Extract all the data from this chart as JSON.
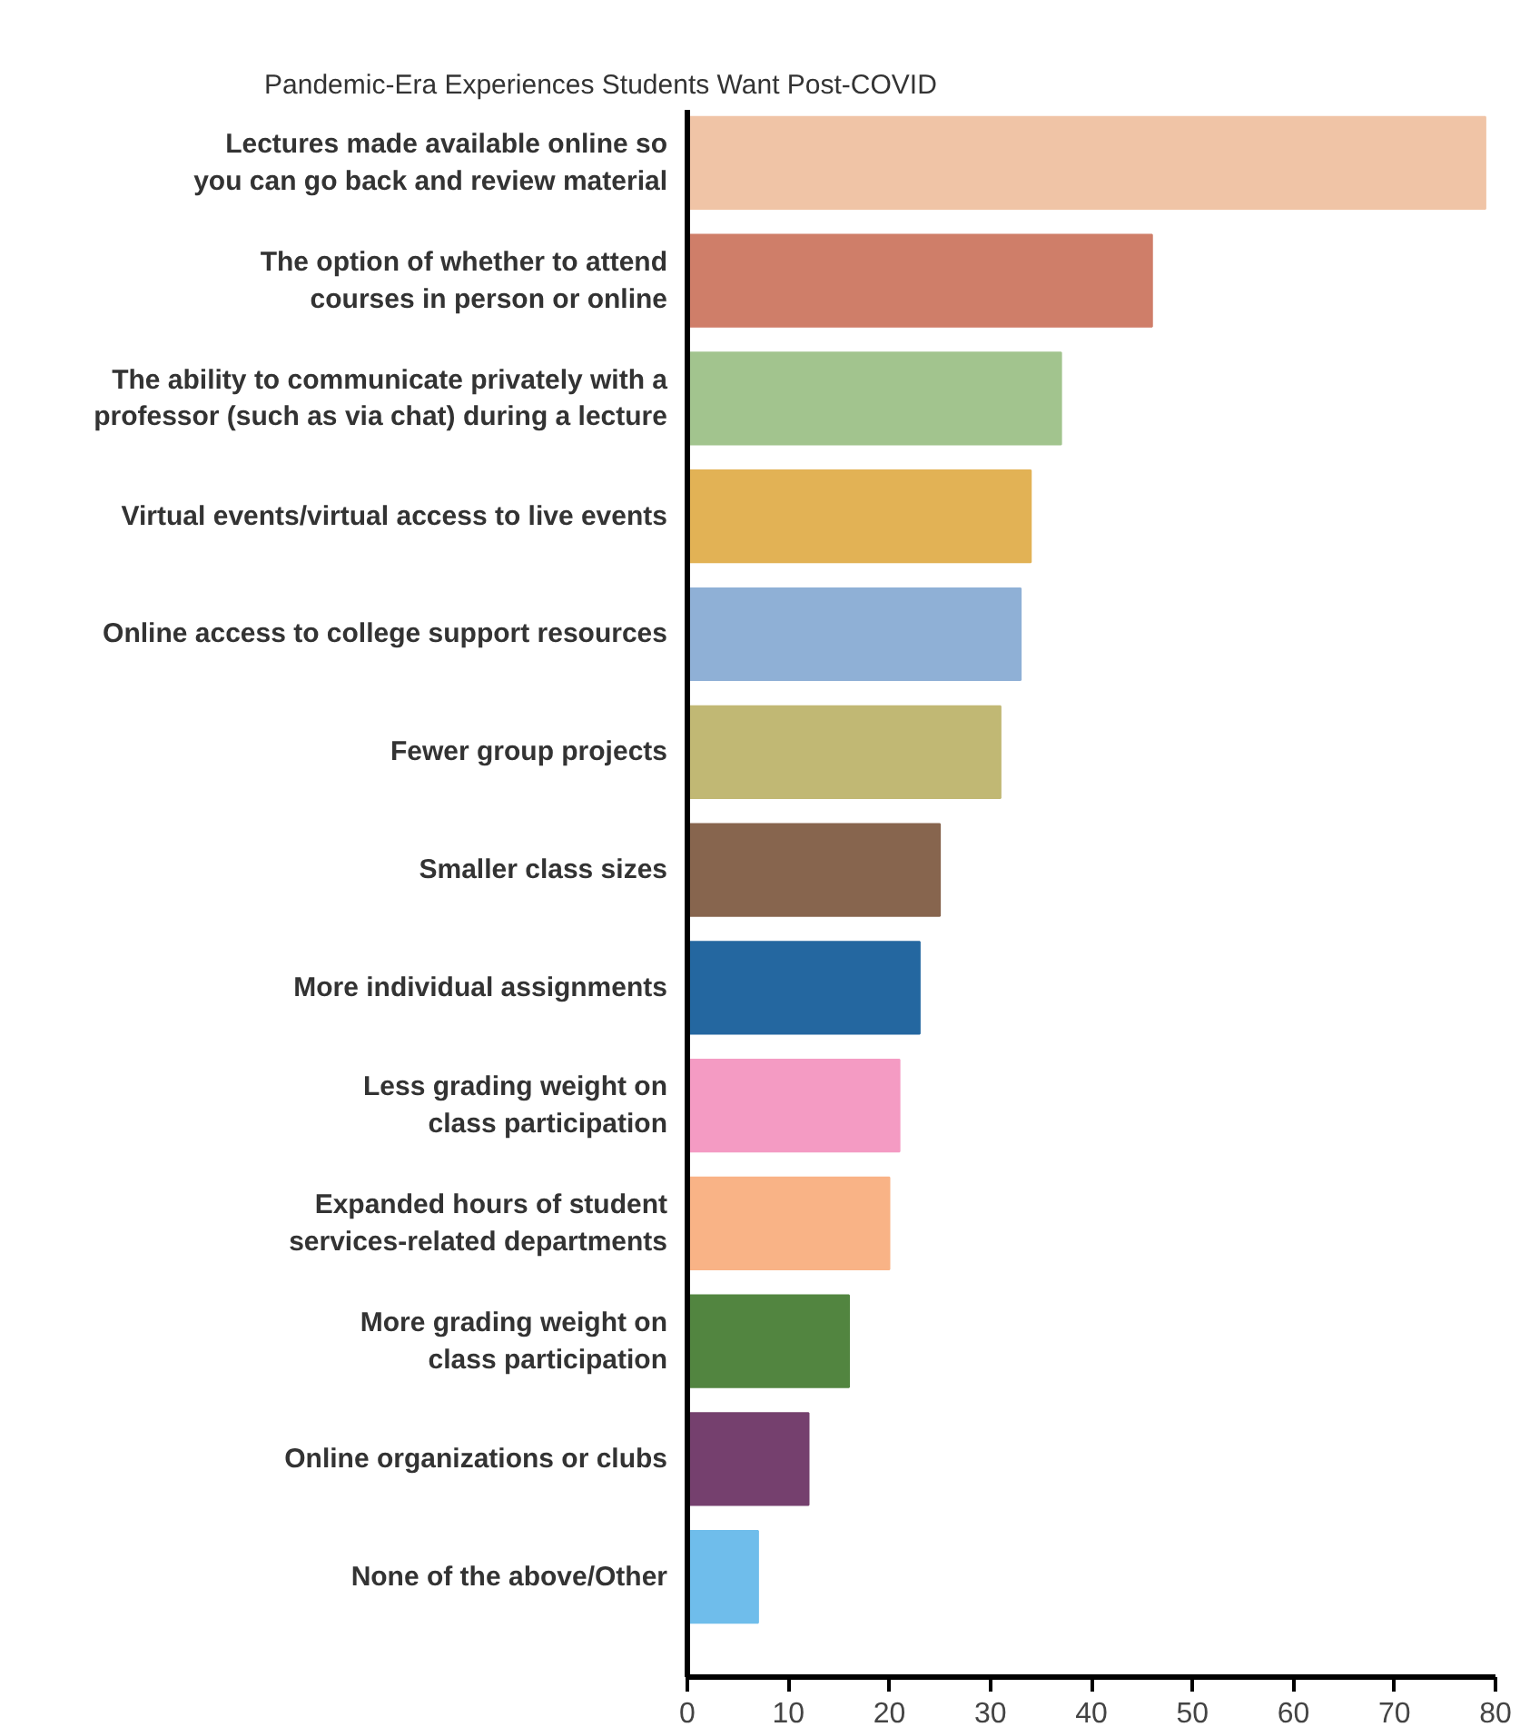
{
  "chart_data": {
    "type": "bar",
    "orientation": "horizontal",
    "title": "Pandemic-Era Experiences Students Want Post-COVID",
    "categories": [
      "Lectures made available online so\nyou can go back and review material",
      "The option of whether to attend\ncourses in person or online",
      "The ability to communicate privately with a\nprofessor (such as via chat) during a lecture",
      "Virtual events/virtual access to live events",
      "Online access to college support resources",
      "Fewer group projects",
      "Smaller class sizes",
      "More individual assignments",
      "Less grading weight on\nclass participation",
      "Expanded hours of student\nservices-related departments",
      "More grading weight on\nclass participation",
      "Online organizations or clubs",
      "None of the above/Other"
    ],
    "values": [
      79,
      46,
      37,
      34,
      33,
      31,
      25,
      23,
      21,
      20,
      16,
      12,
      7
    ],
    "colors": [
      "#f0c4a6",
      "#cf7e69",
      "#a2c48e",
      "#e2b255",
      "#8fb0d6",
      "#c1b874",
      "#87654e",
      "#2467a0",
      "#f49bc3",
      "#f9b386",
      "#528540",
      "#75406e",
      "#6fbdeb"
    ],
    "xlim": [
      0,
      80
    ],
    "xticks": [
      0,
      10,
      20,
      30,
      40,
      50,
      60,
      70,
      80
    ],
    "grid": false
  }
}
